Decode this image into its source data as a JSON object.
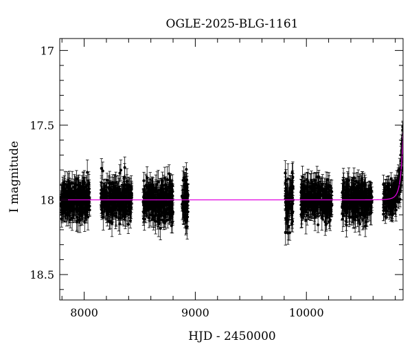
{
  "chart_data": {
    "type": "scatter",
    "title": "OGLE-2025-BLG-1161",
    "xlabel": "HJD - 2450000",
    "ylabel": "I magnitude",
    "xlim": [
      7780,
      10870
    ],
    "ylim": [
      18.67,
      16.92
    ],
    "y_inverted": true,
    "x_ticks": [
      8000,
      9000,
      10000
    ],
    "y_ticks": [
      17,
      17.5,
      18,
      18.5
    ],
    "x_tick_labels": [
      "8000",
      "9000",
      "10000"
    ],
    "y_tick_labels": [
      "17",
      "17.5",
      "18",
      "18.5"
    ],
    "grid": false,
    "legend": "none",
    "colors": {
      "points": "#000000",
      "model": "#e000e0",
      "frame": "#000000"
    },
    "baseline_mag": 18.0,
    "series": [
      {
        "kind": "points-with-errorbars",
        "seasons": [
          {
            "x_range": [
              7790,
              8050
            ],
            "mean_mag": 18.0,
            "scatter": 0.06,
            "err": 0.06
          },
          {
            "x_range": [
              8150,
              8430
            ],
            "mean_mag": 18.0,
            "scatter": 0.06,
            "err": 0.06
          },
          {
            "x_range": [
              8530,
              8800
            ],
            "mean_mag": 18.01,
            "scatter": 0.06,
            "err": 0.06
          },
          {
            "x_range": [
              8880,
              8935
            ],
            "mean_mag": 18.0,
            "scatter": 0.07,
            "err": 0.06
          },
          {
            "x_range": [
              9810,
              9880
            ],
            "mean_mag": 18.02,
            "scatter": 0.08,
            "err": 0.07
          },
          {
            "x_range": [
              9950,
              10230
            ],
            "mean_mag": 18.0,
            "scatter": 0.06,
            "err": 0.06
          },
          {
            "x_range": [
              10320,
              10590
            ],
            "mean_mag": 18.0,
            "scatter": 0.06,
            "err": 0.06
          },
          {
            "x_range": [
              10690,
              10868
            ],
            "mean_mag": 18.0,
            "scatter": 0.05,
            "err": 0.05,
            "follows_model": true
          }
        ]
      },
      {
        "kind": "model-curve",
        "type": "line",
        "t0": 10900,
        "tE": 38,
        "u0": 0.19
      }
    ]
  }
}
